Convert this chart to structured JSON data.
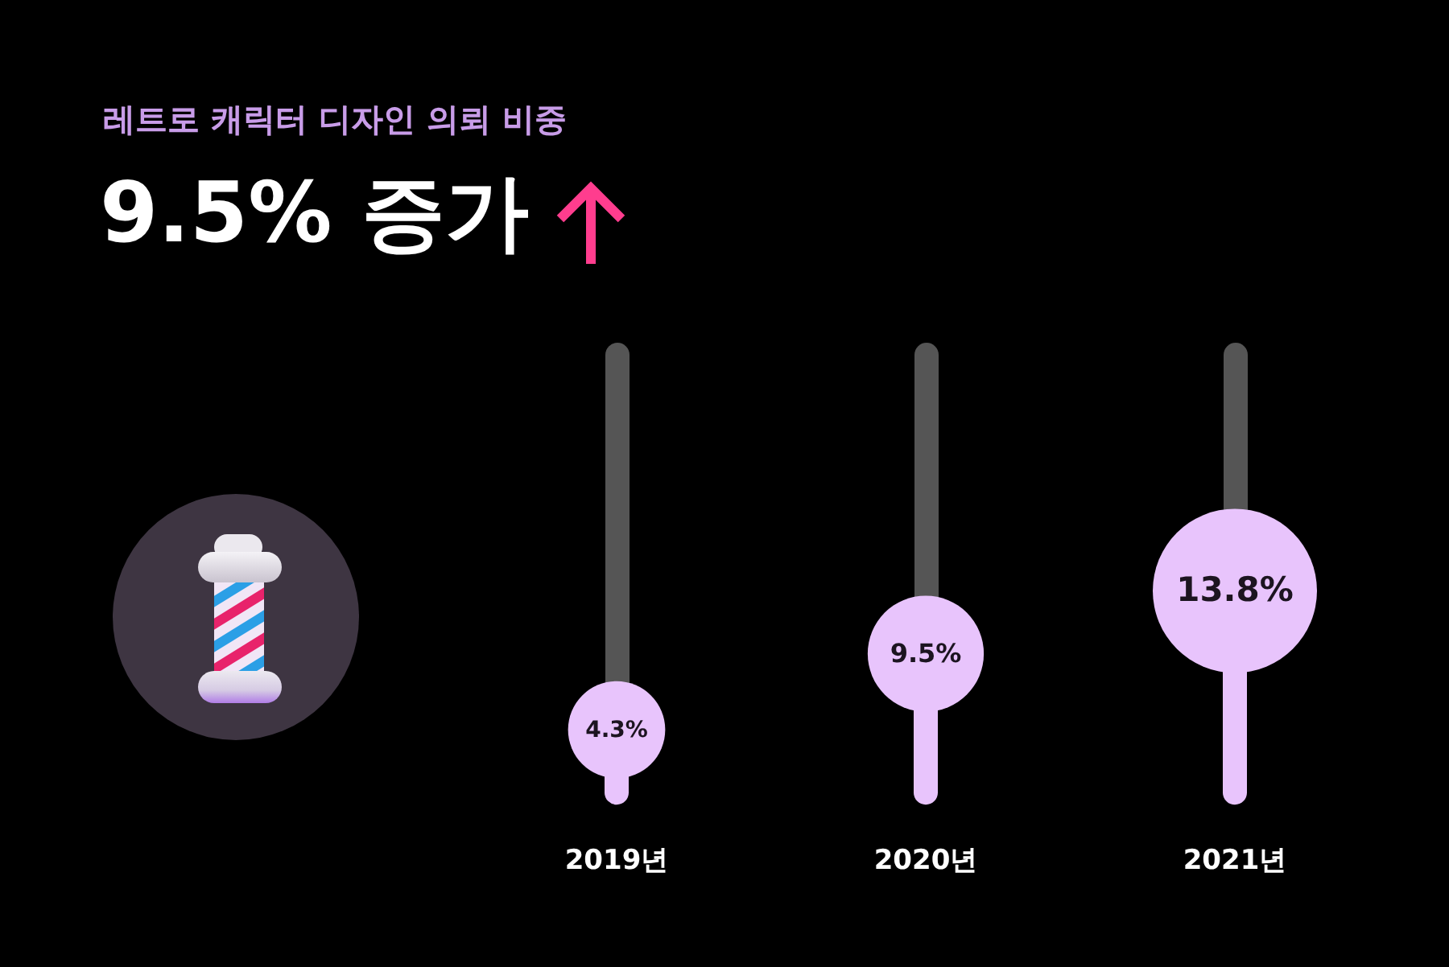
{
  "chart_data": {
    "type": "lollipop",
    "title": "레트로 캐릭터 디자인 의뢰 비중",
    "subtitle": "9.5% 증가",
    "categories": [
      "2019년",
      "2020년",
      "2021년"
    ],
    "values": [
      4.3,
      9.5,
      13.8
    ],
    "sizes": [
      0.35,
      0.5,
      1
    ],
    "value_labels": [
      "4.3%",
      "9.5%",
      "13.8%"
    ],
    "color": "#e8c4fc",
    "marker": "circle",
    "tick_labels": "x"
  }
}
